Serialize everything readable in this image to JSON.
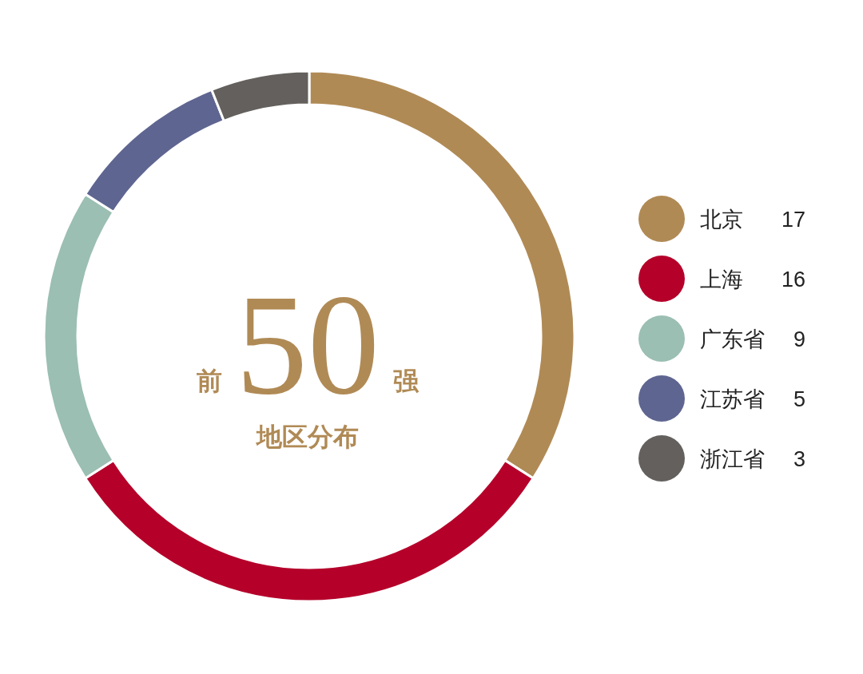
{
  "chart_data": {
    "type": "donut",
    "categories": [
      "北京",
      "上海",
      "广东省",
      "江苏省",
      "浙江省"
    ],
    "values": [
      17,
      16,
      9,
      5,
      3
    ],
    "colors": [
      "#b08a55",
      "#b5002a",
      "#9bbfb2",
      "#5e6590",
      "#63605d"
    ],
    "annotations": [
      "前",
      "50",
      "强",
      "地区分布"
    ],
    "data_labels": true,
    "legend": "right"
  }
}
